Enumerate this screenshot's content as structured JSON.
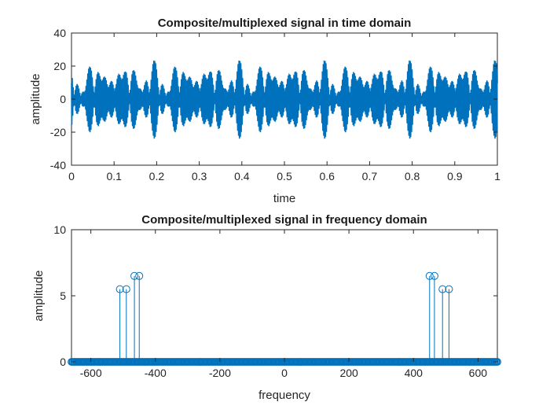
{
  "chart_data": [
    {
      "type": "line",
      "title": "Composite/multiplexed signal in time domain",
      "xlabel": "time",
      "ylabel": "amplitude",
      "xlim": [
        0,
        1
      ],
      "ylim": [
        -40,
        40
      ],
      "xticks": [
        "0",
        "0.1",
        "0.2",
        "0.3",
        "0.4",
        "0.5",
        "0.6",
        "0.7",
        "0.8",
        "0.9",
        "1"
      ],
      "yticks": [
        "-40",
        "-20",
        "0",
        "20",
        "40"
      ],
      "series_color": "#0072BD",
      "envelope_components": [
        {
          "amplitude": 6.5,
          "frequency": 450
        },
        {
          "amplitude": 6.5,
          "frequency": 465
        },
        {
          "amplitude": 5.5,
          "frequency": 490
        },
        {
          "amplitude": 5.5,
          "frequency": 510
        }
      ],
      "peak_amplitude": 24,
      "grid": false
    },
    {
      "type": "stem",
      "title": "Composite/multiplexed signal in frequency domain",
      "xlabel": "frequency",
      "ylabel": "amplitude",
      "xlim": [
        -660,
        660
      ],
      "ylim": [
        0,
        10
      ],
      "xticks": [
        "-600",
        "-400",
        "-200",
        "0",
        "200",
        "400",
        "600"
      ],
      "yticks": [
        "0",
        "5",
        "10"
      ],
      "series_color": "#0072BD",
      "peaks": [
        {
          "x": -510,
          "y": 5.5
        },
        {
          "x": -490,
          "y": 5.5
        },
        {
          "x": -465,
          "y": 6.5
        },
        {
          "x": -450,
          "y": 6.5
        },
        {
          "x": 450,
          "y": 6.5
        },
        {
          "x": 465,
          "y": 6.5
        },
        {
          "x": 490,
          "y": 5.5
        },
        {
          "x": 510,
          "y": 5.5
        }
      ],
      "baseline_value": 0,
      "grid": false
    }
  ]
}
